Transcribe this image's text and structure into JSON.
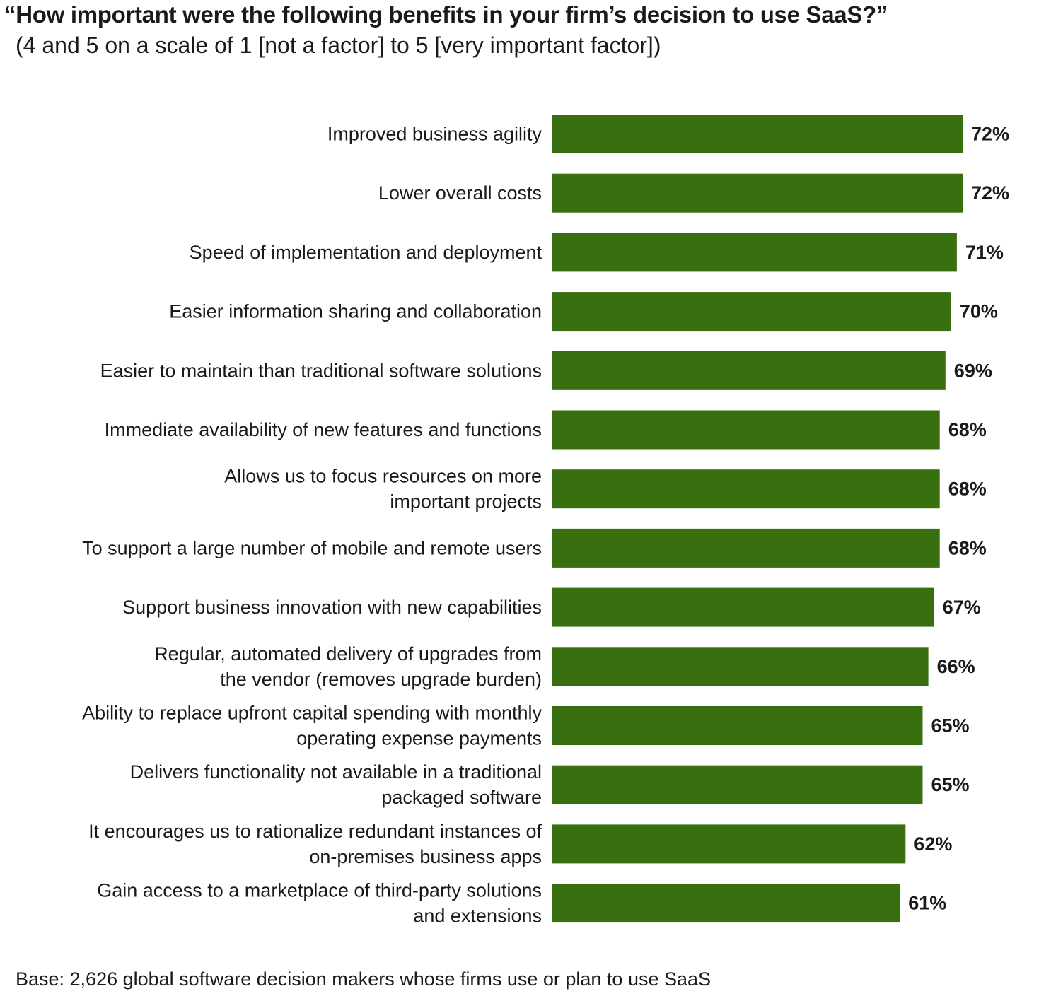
{
  "chart_data": {
    "type": "bar",
    "orientation": "horizontal",
    "title": "“How important were the following benefits in your firm’s decision to use SaaS?”",
    "subtitle": "(4 and 5 on a scale of 1 [not a factor] to 5 [very important factor])",
    "categories": [
      [
        "Improved business agility"
      ],
      [
        "Lower overall costs"
      ],
      [
        "Speed of implementation and deployment"
      ],
      [
        "Easier information sharing and collaboration"
      ],
      [
        "Easier to maintain than traditional software solutions"
      ],
      [
        "Immediate availability of new features and functions"
      ],
      [
        "Allows us to focus resources on more",
        "important projects"
      ],
      [
        "To support a large number of mobile and remote users"
      ],
      [
        "Support business innovation with new capabilities"
      ],
      [
        "Regular, automated delivery of upgrades from",
        "the vendor (removes upgrade burden)"
      ],
      [
        "Ability to replace upfront capital spending with monthly",
        "operating expense payments"
      ],
      [
        "Delivers functionality not available in a traditional",
        "packaged software"
      ],
      [
        "It encourages us to rationalize redundant instances of",
        "on-premises business apps"
      ],
      [
        "Gain access to a marketplace of third-party solutions",
        "and extensions"
      ]
    ],
    "values": [
      72,
      72,
      71,
      70,
      69,
      68,
      68,
      68,
      67,
      66,
      65,
      65,
      62,
      61
    ],
    "value_labels": [
      "72%",
      "72%",
      "71%",
      "70%",
      "69%",
      "68%",
      "68%",
      "68%",
      "67%",
      "66%",
      "65%",
      "65%",
      "62%",
      "61%"
    ],
    "unit": "%",
    "xlim": [
      0,
      72
    ],
    "bar_color": "#38700f",
    "grid": false,
    "legend": "none",
    "footnote": "Base: 2,626 global software decision makers whose firms use or plan to use SaaS"
  }
}
